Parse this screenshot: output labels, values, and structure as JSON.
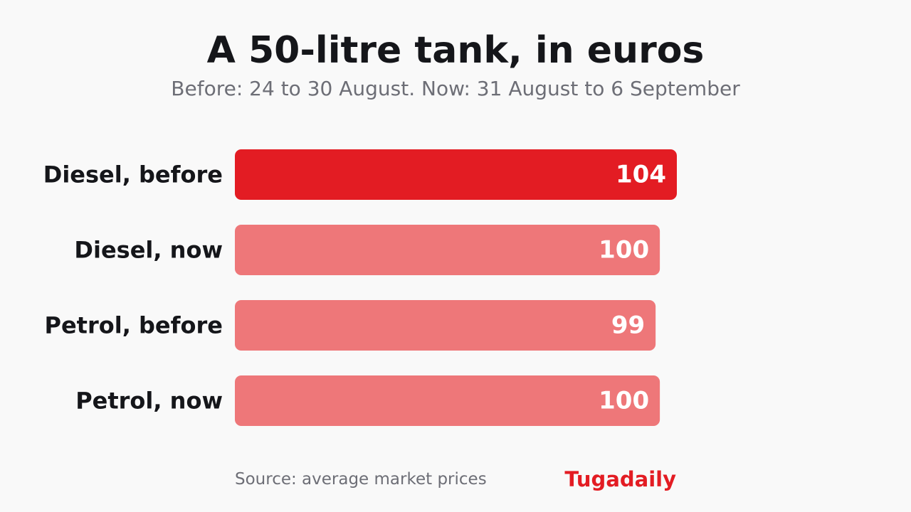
{
  "header": {
    "title": "A 50-litre tank, in euros",
    "subtitle": "Before: 24 to 30 August. Now: 31 August to 6 September"
  },
  "chart_data": {
    "type": "bar",
    "orientation": "horizontal",
    "title": "A 50-litre tank, in euros",
    "subtitle": "Before: 24 to 30 August. Now: 31 August to 6 September",
    "categories": [
      "Diesel, before",
      "Diesel, now",
      "Petrol, before",
      "Petrol, now"
    ],
    "values": [
      104,
      100,
      99,
      100
    ],
    "value_labels": [
      "104",
      "100",
      "99",
      "100"
    ],
    "highlight_index": 0,
    "xlabel": "",
    "ylabel": "",
    "xlim": [
      0,
      104
    ],
    "grid": false,
    "legend": "none"
  },
  "colors": {
    "highlight_bar": "#e31c23",
    "bar": "#ee7779",
    "bar_label": "#ffffff",
    "category_label": "#15161a",
    "brand": "#e31c23"
  },
  "footer": {
    "source": "Source: average market prices",
    "brand": "Tugadaily"
  }
}
